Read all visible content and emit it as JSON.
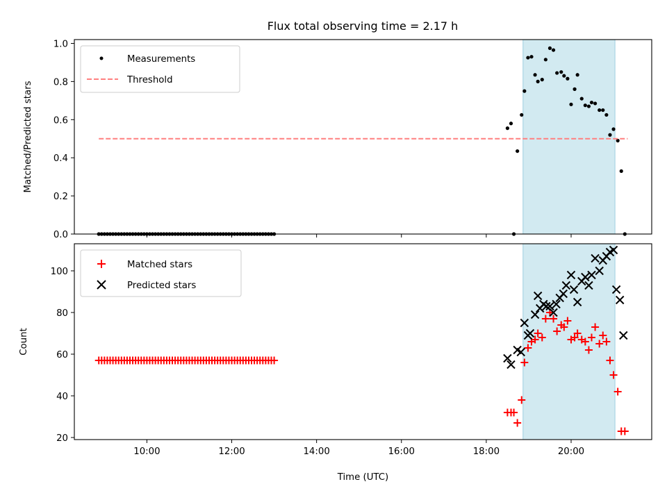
{
  "chart_data": [
    {
      "type": "scatter",
      "title": "Flux total observing time = 2.17 h",
      "ylabel": "Matched/Predicted stars",
      "ylim": [
        0.0,
        1.02
      ],
      "yticks": [
        "0.0",
        "0.2",
        "0.4",
        "0.6",
        "0.8",
        "1.0"
      ],
      "xticks": [
        "10:00",
        "12:00",
        "14:00",
        "16:00",
        "18:00",
        "20:00"
      ],
      "shaded_interval": [
        "18:52",
        "21:02"
      ],
      "shaded_color": "#add8e6",
      "legend_position": "upper left",
      "series": [
        {
          "name": "Measurements",
          "marker": "dot",
          "color": "#000000",
          "x": [
            "08:52",
            "08:56",
            "09:00",
            "09:04",
            "09:08",
            "09:12",
            "09:16",
            "09:20",
            "09:24",
            "09:28",
            "09:32",
            "09:36",
            "09:40",
            "09:44",
            "09:48",
            "09:52",
            "09:56",
            "10:00",
            "10:04",
            "10:08",
            "10:12",
            "10:16",
            "10:20",
            "10:24",
            "10:28",
            "10:32",
            "10:36",
            "10:40",
            "10:44",
            "10:48",
            "10:52",
            "10:56",
            "11:00",
            "11:04",
            "11:08",
            "11:12",
            "11:16",
            "11:20",
            "11:24",
            "11:28",
            "11:32",
            "11:36",
            "11:40",
            "11:44",
            "11:48",
            "11:52",
            "11:56",
            "12:00",
            "12:04",
            "12:08",
            "12:12",
            "12:16",
            "12:20",
            "12:24",
            "12:28",
            "12:32",
            "12:36",
            "12:40",
            "12:44",
            "12:48",
            "12:52",
            "12:56",
            "13:00",
            "18:30",
            "18:35",
            "18:39",
            "18:44",
            "18:50",
            "18:54",
            "18:59",
            "19:04",
            "19:09",
            "19:13",
            "19:19",
            "19:24",
            "19:30",
            "19:35",
            "19:40",
            "19:46",
            "19:50",
            "19:55",
            "20:00",
            "20:05",
            "20:09",
            "20:15",
            "20:20",
            "20:25",
            "20:29",
            "20:34",
            "20:40",
            "20:45",
            "20:50",
            "20:55",
            "21:00",
            "21:06",
            "21:11",
            "21:16"
          ],
          "y": [
            0,
            0,
            0,
            0,
            0,
            0,
            0,
            0,
            0,
            0,
            0,
            0,
            0,
            0,
            0,
            0,
            0,
            0,
            0,
            0,
            0,
            0,
            0,
            0,
            0,
            0,
            0,
            0,
            0,
            0,
            0,
            0,
            0,
            0,
            0,
            0,
            0,
            0,
            0,
            0,
            0,
            0,
            0,
            0,
            0,
            0,
            0,
            0,
            0,
            0,
            0,
            0,
            0,
            0,
            0,
            0,
            0,
            0,
            0,
            0,
            0,
            0,
            0,
            0.555,
            0.58,
            0.0,
            0.435,
            0.625,
            0.75,
            0.925,
            0.93,
            0.835,
            0.8,
            0.81,
            0.915,
            0.975,
            0.965,
            0.845,
            0.85,
            0.83,
            0.815,
            0.68,
            0.76,
            0.835,
            0.71,
            0.675,
            0.67,
            0.69,
            0.685,
            0.65,
            0.65,
            0.625,
            0.52,
            0.55,
            0.49,
            0.33,
            0.0
          ]
        },
        {
          "name": "Threshold",
          "marker": "dashed-line",
          "color": "#ff7f7f",
          "x": [
            "08:52",
            "21:20"
          ],
          "y": [
            0.5,
            0.5
          ]
        }
      ]
    },
    {
      "type": "scatter",
      "xlabel": "Time (UTC)",
      "ylabel": "Count",
      "ylim": [
        19,
        113
      ],
      "yticks": [
        "20",
        "40",
        "60",
        "80",
        "100"
      ],
      "xticks": [
        "10:00",
        "12:00",
        "14:00",
        "16:00",
        "18:00",
        "20:00"
      ],
      "shaded_interval": [
        "18:52",
        "21:02"
      ],
      "shaded_color": "#add8e6",
      "legend_position": "upper left",
      "series": [
        {
          "name": "Matched stars",
          "marker": "plus",
          "color": "#ff0000",
          "x": [
            "08:52",
            "08:56",
            "09:00",
            "09:04",
            "09:08",
            "09:12",
            "09:16",
            "09:20",
            "09:24",
            "09:28",
            "09:32",
            "09:36",
            "09:40",
            "09:44",
            "09:48",
            "09:52",
            "09:56",
            "10:00",
            "10:04",
            "10:08",
            "10:12",
            "10:16",
            "10:20",
            "10:24",
            "10:28",
            "10:32",
            "10:36",
            "10:40",
            "10:44",
            "10:48",
            "10:52",
            "10:56",
            "11:00",
            "11:04",
            "11:08",
            "11:12",
            "11:16",
            "11:20",
            "11:24",
            "11:28",
            "11:32",
            "11:36",
            "11:40",
            "11:44",
            "11:48",
            "11:52",
            "11:56",
            "12:00",
            "12:04",
            "12:08",
            "12:12",
            "12:16",
            "12:20",
            "12:24",
            "12:28",
            "12:32",
            "12:36",
            "12:40",
            "12:44",
            "12:48",
            "12:52",
            "12:56",
            "13:00",
            "18:30",
            "18:35",
            "18:39",
            "18:44",
            "18:50",
            "18:54",
            "18:59",
            "19:04",
            "19:09",
            "19:13",
            "19:19",
            "19:24",
            "19:30",
            "19:35",
            "19:40",
            "19:46",
            "19:50",
            "19:55",
            "20:00",
            "20:05",
            "20:09",
            "20:15",
            "20:20",
            "20:25",
            "20:29",
            "20:34",
            "20:40",
            "20:45",
            "20:50",
            "20:55",
            "21:00",
            "21:06",
            "21:11",
            "21:16"
          ],
          "y": [
            57,
            57,
            57,
            57,
            57,
            57,
            57,
            57,
            57,
            57,
            57,
            57,
            57,
            57,
            57,
            57,
            57,
            57,
            57,
            57,
            57,
            57,
            57,
            57,
            57,
            57,
            57,
            57,
            57,
            57,
            57,
            57,
            57,
            57,
            57,
            57,
            57,
            57,
            57,
            57,
            57,
            57,
            57,
            57,
            57,
            57,
            57,
            57,
            57,
            57,
            57,
            57,
            57,
            57,
            57,
            57,
            57,
            57,
            57,
            57,
            57,
            57,
            57,
            32,
            32,
            32,
            27,
            38,
            56,
            63,
            66,
            67,
            70,
            68,
            77,
            80,
            77,
            71,
            74,
            73,
            76,
            67,
            68,
            70,
            67,
            66,
            62,
            68,
            73,
            65,
            69,
            66,
            57,
            50,
            42,
            23,
            23
          ]
        },
        {
          "name": "Predicted stars",
          "marker": "x",
          "color": "#000000",
          "x": [
            "18:30",
            "18:35",
            "18:44",
            "18:49",
            "18:54",
            "18:59",
            "19:02",
            "19:09",
            "19:13",
            "19:16",
            "19:21",
            "19:25",
            "19:30",
            "19:35",
            "19:39",
            "19:44",
            "19:49",
            "19:53",
            "20:00",
            "20:04",
            "20:09",
            "20:15",
            "20:20",
            "20:25",
            "20:29",
            "20:34",
            "20:40",
            "20:45",
            "20:50",
            "20:55",
            "21:00",
            "21:04",
            "21:09",
            "21:14"
          ],
          "y": [
            58,
            55,
            62,
            61,
            75,
            69,
            70,
            79,
            88,
            82,
            84,
            83,
            83,
            80,
            84,
            87,
            89,
            93,
            98,
            91,
            85,
            95,
            97,
            93,
            98,
            106,
            100,
            105,
            107,
            109,
            110,
            91,
            86,
            69
          ]
        }
      ]
    }
  ]
}
